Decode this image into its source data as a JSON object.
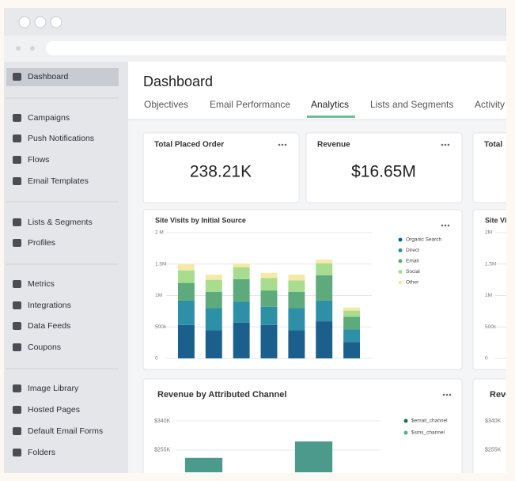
{
  "sidebar": {
    "groups": [
      [
        "Dashboard"
      ],
      [
        "Campaigns",
        "Push Notifications",
        "Flows",
        "Email Templates"
      ],
      [
        "Lists & Segments",
        "Profiles"
      ],
      [
        "Metrics",
        "Integrations",
        "Data Feeds",
        "Coupons"
      ],
      [
        "Image Library",
        "Hosted Pages",
        "Default Email Forms",
        "Folders"
      ]
    ]
  },
  "header": {
    "title": "Dashboard",
    "tabs": [
      "Objectives",
      "Email Performance",
      "Analytics",
      "Lists and Segments",
      "Activity"
    ]
  },
  "cards": [
    {
      "title": "Total Placed Order",
      "value": "238.21K"
    },
    {
      "title": "Revenue",
      "value": "$16.65M"
    },
    {
      "title": "Total"
    }
  ],
  "chart_data": [
    {
      "type": "stacked_bar",
      "title": "Site Visits by Initial Source",
      "categories": [
        null,
        null,
        null,
        null,
        null,
        null,
        null
      ],
      "series": [
        {
          "name": "Organic Search",
          "color": "#1b5f8c",
          "values": [
            530000,
            450000,
            570000,
            530000,
            450000,
            590000,
            260000
          ]
        },
        {
          "name": "Direct",
          "color": "#2e90a6",
          "values": [
            390000,
            350000,
            330000,
            290000,
            350000,
            330000,
            200000
          ]
        },
        {
          "name": "Email",
          "color": "#5daa7c",
          "values": [
            280000,
            260000,
            360000,
            260000,
            260000,
            400000,
            200000
          ]
        },
        {
          "name": "Social",
          "color": "#a8dc8e",
          "values": [
            200000,
            190000,
            190000,
            200000,
            180000,
            190000,
            100000
          ]
        },
        {
          "name": "Other",
          "color": "#f6e9a6",
          "values": [
            100000,
            80000,
            60000,
            80000,
            90000,
            60000,
            50000
          ]
        }
      ],
      "ylim": [
        0,
        2000000
      ],
      "yticks": [
        0,
        {
          "value": 500000,
          "label": "500k"
        },
        {
          "value": 1000000,
          "label": "1M"
        },
        {
          "value": 1500000,
          "label": "1.5M"
        },
        {
          "value": 2000000,
          "label": "2 M"
        }
      ],
      "grid": true
    },
    {
      "type": "bar",
      "title": "Revenue by Attributed Channel",
      "categories": [
        null,
        null
      ],
      "values": [
        232000,
        280000
      ],
      "color": "#4b9a8b",
      "legend": [
        {
          "name": "$email_channel",
          "color": "#1f6e5b"
        },
        {
          "name": "$sms_channel",
          "color": "#5aab9a"
        }
      ],
      "ylim": [
        190000,
        340000
      ],
      "yticks": [
        {
          "value": 255000,
          "label": "$255K"
        },
        {
          "value": 340000,
          "label": "$340K"
        }
      ],
      "grid": true
    },
    {
      "type": "stacked_bar",
      "title": "Site Vi",
      "ylim": [
        0,
        2000000
      ],
      "yticks": [
        0,
        {
          "value": 500000,
          "label": "500k"
        },
        {
          "value": 1000000,
          "label": "1M"
        },
        {
          "value": 1500000,
          "label": "1.5M"
        },
        {
          "value": 2000000,
          "label": "2M"
        }
      ],
      "grid": true
    },
    {
      "type": "bar",
      "title": "Reve",
      "ylim": [
        190000,
        340000
      ],
      "yticks": [
        {
          "value": 255000,
          "label": "$255K"
        },
        {
          "value": 340000,
          "label": "$340K"
        }
      ],
      "grid": true
    }
  ]
}
